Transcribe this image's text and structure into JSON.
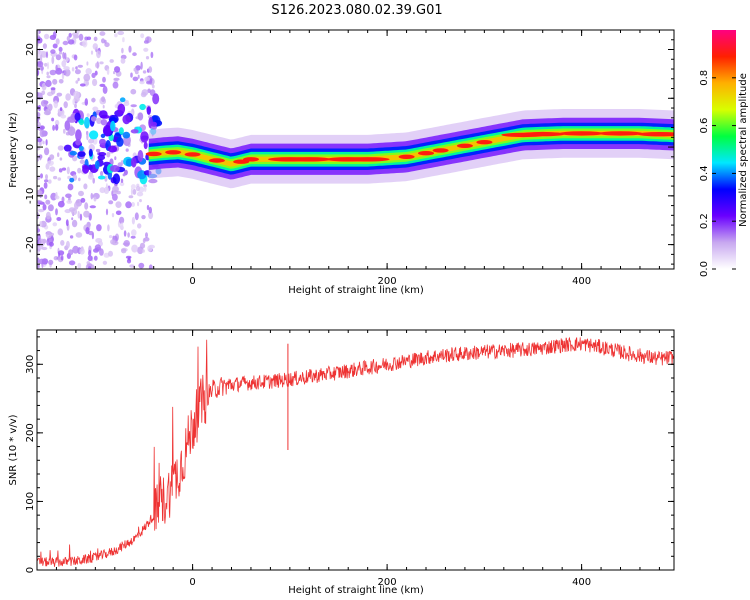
{
  "page": {
    "title": "S126.2023.080.02.39.G01"
  },
  "chart_data": [
    {
      "type": "heatmap",
      "title": "S126.2023.080.02.39.G01",
      "xlabel": "Height of straight line (km)",
      "ylabel": "Frequency (Hz)",
      "xlim": [
        -160,
        495
      ],
      "ylim": [
        -25,
        24
      ],
      "xticks": [
        0,
        200,
        400
      ],
      "yticks": [
        -20,
        -10,
        0,
        10,
        20
      ],
      "colorbar": {
        "label": "Normalized spectral amplitude",
        "range": [
          0,
          1
        ],
        "ticks": [
          0.0,
          0.2,
          0.4,
          0.6,
          0.8
        ],
        "colormap": [
          "#ffffff",
          "#c8a8f0",
          "#6a00ff",
          "#0000ff",
          "#00e8ff",
          "#00ff40",
          "#d8ff00",
          "#ffb000",
          "#ff2000",
          "#ff0080"
        ]
      },
      "ridge": {
        "x": [
          -45,
          -30,
          -15,
          0,
          20,
          40,
          60,
          100,
          140,
          180,
          220,
          260,
          300,
          340,
          380,
          420,
          460,
          495
        ],
        "y": [
          -1.5,
          -1.2,
          -1.0,
          -1.5,
          -2.5,
          -3.5,
          -2.5,
          -2.5,
          -2.5,
          -2.5,
          -2.0,
          -0.5,
          1.0,
          2.5,
          2.8,
          2.8,
          2.8,
          2.5
        ]
      },
      "grid": false
    },
    {
      "type": "line",
      "xlabel": "Height of straight line (km)",
      "ylabel": "SNR (10 * v/v)",
      "xlim": [
        -160,
        495
      ],
      "ylim": [
        0,
        350
      ],
      "xticks": [
        0,
        200,
        400
      ],
      "yticks": [
        0,
        100,
        200,
        300
      ],
      "series": [
        {
          "color": "#ee3333",
          "x": [
            -160,
            -140,
            -120,
            -100,
            -80,
            -60,
            -50,
            -40,
            -30,
            -20,
            -10,
            0,
            10,
            20,
            30,
            50,
            80,
            100,
            120,
            150,
            200,
            250,
            300,
            350,
            380,
            400,
            420,
            450,
            480,
            495
          ],
          "y": [
            12,
            11,
            13,
            18,
            28,
            45,
            60,
            80,
            100,
            125,
            160,
            210,
            245,
            262,
            268,
            272,
            275,
            278,
            282,
            288,
            300,
            312,
            318,
            322,
            328,
            330,
            325,
            315,
            308,
            310
          ]
        }
      ],
      "annotations": [
        {
          "x": 98,
          "y": 175,
          "text": ""
        }
      ],
      "grid": false
    }
  ]
}
